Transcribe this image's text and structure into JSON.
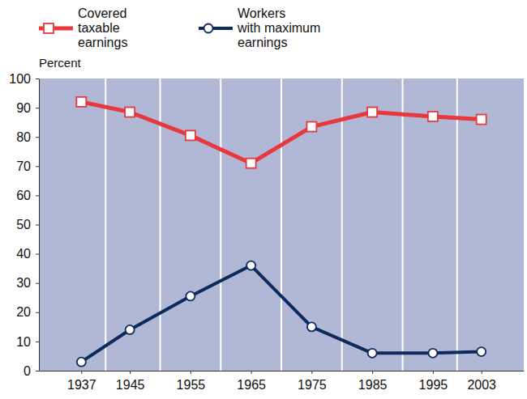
{
  "chart_data": {
    "type": "line",
    "y_label": "Percent",
    "x": [
      1937,
      1945,
      1955,
      1965,
      1975,
      1985,
      1995,
      2003
    ],
    "series": [
      {
        "name": "Covered\ntaxable\nearnings",
        "color": "#e8383d",
        "marker": "square",
        "line_style": "solid",
        "values": [
          92,
          88.5,
          80.5,
          71,
          83.5,
          88.5,
          87,
          86
        ]
      },
      {
        "name": "Workers\nwith maximum\nearnings",
        "color": "#0d2a5c",
        "marker": "circle",
        "line_style": "solid",
        "values": [
          3,
          14,
          25.5,
          36,
          15,
          6,
          6,
          6.5
        ]
      }
    ],
    "xlim": [
      1930,
      2010
    ],
    "xticks": [
      1937,
      1945,
      1955,
      1965,
      1975,
      1985,
      1995,
      2003
    ],
    "ylim": [
      0,
      100
    ],
    "yticks": [
      0,
      10,
      20,
      30,
      40,
      50,
      60,
      70,
      80,
      90,
      100
    ],
    "legend": "top"
  }
}
